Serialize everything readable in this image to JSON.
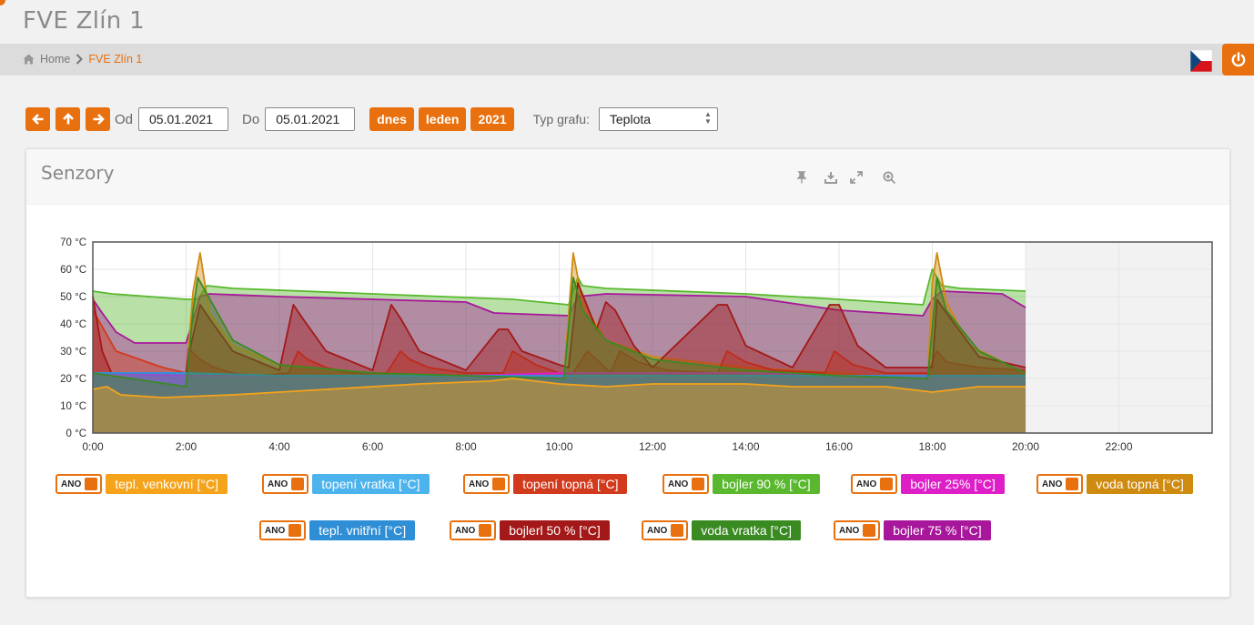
{
  "header": {
    "title": "FVE Zlín 1"
  },
  "breadcrumb": {
    "home": "Home",
    "current": "FVE Zlín 1"
  },
  "toolbar": {
    "od_label": "Od",
    "do_label": "Do",
    "od_value": "05.01.2021",
    "do_value": "05.01.2021",
    "btn_today": "dnes",
    "btn_month": "leden",
    "btn_year": "2021",
    "typ_label": "Typ grafu:",
    "typ_value": "Teplota"
  },
  "panel": {
    "title": "Senzory"
  },
  "colors": {
    "accent": "#e8700e"
  },
  "icons": [
    "arrow-left-icon",
    "arrow-up-icon",
    "arrow-right-icon",
    "home-icon",
    "chevron-right-icon",
    "czech-flag-icon",
    "power-icon",
    "pin-icon",
    "download-icon",
    "expand-icon",
    "zoom-in-icon"
  ],
  "legend": [
    {
      "ano": "ANO",
      "name": "tepl. venkovní [°C]",
      "color": "#f5a31a"
    },
    {
      "ano": "ANO",
      "name": "topení vratka [°C]",
      "color": "#4db3ec"
    },
    {
      "ano": "ANO",
      "name": "topení topná [°C]",
      "color": "#d23a1e"
    },
    {
      "ano": "ANO",
      "name": "bojler 90 % [°C]",
      "color": "#59b82e"
    },
    {
      "ano": "ANO",
      "name": "bojler 25% [°C]",
      "color": "#de1fc8"
    },
    {
      "ano": "ANO",
      "name": "voda topná [°C]",
      "color": "#cf8a10"
    },
    {
      "ano": "ANO",
      "name": "tepl. vnitřní [°C]",
      "color": "#2f8fd6"
    },
    {
      "ano": "ANO",
      "name": "bojlerl 50 % [°C]",
      "color": "#a31818"
    },
    {
      "ano": "ANO",
      "name": "voda vratka [°C]",
      "color": "#3a8a22"
    },
    {
      "ano": "ANO",
      "name": "bojler 75 % [°C]",
      "color": "#a8179b"
    }
  ],
  "chart_data": {
    "type": "area",
    "x_ticks": [
      "0:00",
      "2:00",
      "4:00",
      "6:00",
      "8:00",
      "10:00",
      "12:00",
      "14:00",
      "16:00",
      "18:00",
      "20:00",
      "22:00"
    ],
    "y_ticks": [
      "0 °C",
      "10 °C",
      "20 °C",
      "30 °C",
      "40 °C",
      "50 °C",
      "60 °C",
      "70 °C"
    ],
    "xlim": [
      0,
      24
    ],
    "ylim": [
      0,
      70
    ],
    "x_unit": "hours",
    "grid": true,
    "series": [
      {
        "name": "bojler 90 % [°C]",
        "color": "#59b82e",
        "x": [
          0,
          0.4,
          2.0,
          2.25,
          2.45,
          3,
          6,
          9,
          10.2,
          10.4,
          10.5,
          11,
          14,
          16,
          17.8,
          18.0,
          18.2,
          18.6,
          20
        ],
        "values": [
          52,
          51,
          49,
          49,
          54,
          53,
          51,
          49,
          47,
          57,
          54,
          53,
          51,
          49,
          47,
          60,
          54,
          53,
          52
        ]
      },
      {
        "name": "bojler 75 % [°C]",
        "color": "#a8179b",
        "x": [
          0,
          0.2,
          0.5,
          0.9,
          1.5,
          2.0,
          2.3,
          2.5,
          4,
          6,
          8,
          8.6,
          10.2,
          10.4,
          11,
          14,
          16,
          17.8,
          18.0,
          18.2,
          19.5,
          20
        ],
        "values": [
          49,
          44,
          37,
          33,
          33,
          33,
          50,
          51,
          50,
          49,
          48,
          44,
          43,
          50,
          51,
          50,
          45,
          43,
          49,
          52,
          51,
          46
        ]
      },
      {
        "name": "voda topná [°C]",
        "color": "#cf8a10",
        "x": [
          0,
          2.0,
          2.15,
          2.3,
          2.5,
          3,
          4,
          6,
          8,
          9,
          10.1,
          10.3,
          10.5,
          11,
          12,
          14,
          16,
          17.9,
          18.0,
          18.1,
          18.3,
          18.8,
          20
        ],
        "values": [
          22,
          20,
          52,
          66,
          44,
          32,
          25,
          22,
          21,
          21,
          20,
          66,
          48,
          34,
          28,
          24,
          22,
          20,
          55,
          66,
          48,
          32,
          22
        ]
      },
      {
        "name": "topení topná [°C]",
        "color": "#d23a1e",
        "x": [
          0,
          0.5,
          1.5,
          2.0,
          2.05,
          2.3,
          2.6,
          3,
          3.5,
          4.2,
          4.4,
          4.6,
          5,
          5.5,
          6.3,
          6.6,
          6.8,
          7.2,
          8,
          8.8,
          9.0,
          9.5,
          10.0,
          10.3,
          10.6,
          10.8,
          11.1,
          11.3,
          11.7,
          12.3,
          13.4,
          13.6,
          14.0,
          14.6,
          15.7,
          15.9,
          16.3,
          17.0,
          17.9,
          18.1,
          18.3,
          19.0,
          20
        ],
        "values": [
          45,
          30,
          24,
          22,
          31,
          27,
          24,
          22,
          21,
          22,
          30,
          27,
          24,
          22,
          22,
          30,
          27,
          24,
          22,
          22,
          30,
          25,
          22,
          22,
          30,
          27,
          22,
          30,
          26,
          23,
          22,
          30,
          26,
          23,
          22,
          30,
          25,
          22,
          22,
          30,
          26,
          24,
          23
        ]
      },
      {
        "name": "bojlerl 50 % [°C]",
        "color": "#a31818",
        "x": [
          0,
          0.2,
          0.4,
          1,
          2.0,
          2.1,
          2.3,
          2.5,
          3,
          4,
          4.3,
          4.5,
          5,
          6,
          6.4,
          6.6,
          7,
          8,
          8.7,
          8.9,
          9.2,
          10,
          10.2,
          10.4,
          10.8,
          11.0,
          11.2,
          11.6,
          12,
          13.4,
          13.6,
          14,
          15,
          15.8,
          16,
          16.4,
          17,
          18,
          18.1,
          18.3,
          19,
          20
        ],
        "values": [
          50,
          30,
          22,
          22,
          22,
          32,
          47,
          42,
          30,
          23,
          47,
          42,
          30,
          23,
          47,
          42,
          30,
          23,
          38,
          38,
          30,
          25,
          24,
          55,
          38,
          48,
          45,
          32,
          24,
          47,
          47,
          32,
          24,
          47,
          47,
          32,
          24,
          24,
          49,
          44,
          28,
          24
        ]
      },
      {
        "name": "topení vratka [°C]",
        "color": "#4db3ec",
        "x": [
          0,
          2,
          4,
          6,
          8,
          10,
          12,
          14,
          16,
          18,
          20
        ],
        "values": [
          22,
          22,
          21,
          21,
          21,
          21,
          21,
          21,
          21,
          21,
          21
        ]
      },
      {
        "name": "bojler 25% [°C]",
        "color": "#de1fc8",
        "x": [
          0,
          2,
          4,
          6,
          8,
          10,
          12,
          14,
          16,
          18,
          20
        ],
        "values": [
          22,
          21,
          21,
          21,
          21,
          22,
          22,
          22,
          21,
          21,
          21
        ]
      },
      {
        "name": "tepl. vnitřní [°C]",
        "color": "#2f8fd6",
        "x": [
          0,
          2,
          4,
          6,
          8,
          10,
          12,
          14,
          16,
          18,
          20
        ],
        "values": [
          22,
          22,
          21,
          21,
          21,
          21,
          21,
          21,
          21,
          21,
          21
        ]
      },
      {
        "name": "voda vratka [°C]",
        "color": "#3a8a22",
        "x": [
          0,
          2.0,
          2.15,
          2.25,
          3,
          4,
          6,
          8,
          10.1,
          10.3,
          10.5,
          11,
          12,
          14,
          16,
          17.9,
          18.1,
          18.3,
          19,
          20
        ],
        "values": [
          22,
          17,
          45,
          57,
          34,
          25,
          22,
          21,
          20,
          57,
          45,
          34,
          27,
          23,
          21,
          20,
          57,
          45,
          30,
          22
        ]
      },
      {
        "name": "tepl. venkovní [°C]",
        "color": "#f5a31a",
        "x": [
          0,
          0.3,
          0.6,
          1.5,
          3,
          5,
          7,
          8.5,
          9.0,
          10,
          11,
          12,
          13,
          14,
          15,
          16,
          17,
          18,
          18.5,
          19,
          20
        ],
        "values": [
          16,
          17,
          14,
          13,
          14,
          16,
          18,
          19,
          20,
          18,
          17,
          18,
          18,
          18,
          17,
          17,
          17,
          15,
          16,
          17,
          17
        ]
      }
    ]
  }
}
